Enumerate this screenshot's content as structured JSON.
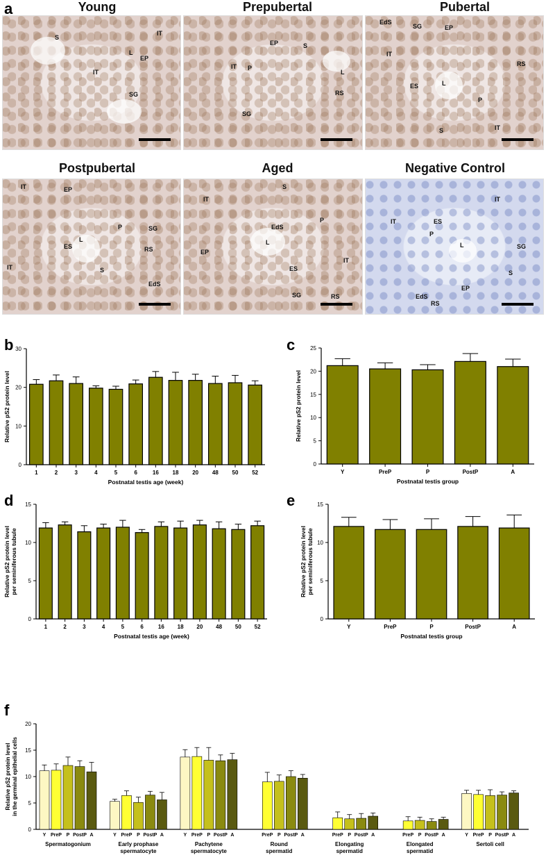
{
  "panel_letters": [
    "a",
    "b",
    "c",
    "d",
    "e",
    "f"
  ],
  "images": [
    {
      "title": "Young",
      "labels": [
        "S",
        "IT",
        "L",
        "EP",
        "IT",
        "SG"
      ],
      "kind": "stain"
    },
    {
      "title": "Prepubertal",
      "labels": [
        "EP",
        "S",
        "IT",
        "P",
        "L",
        "RS",
        "SG"
      ],
      "kind": "stain"
    },
    {
      "title": "Pubertal",
      "labels": [
        "EdS",
        "SG",
        "EP",
        "IT",
        "RS",
        "ES",
        "L",
        "P",
        "S",
        "IT"
      ],
      "kind": "stain"
    },
    {
      "title": "Postpubertal",
      "labels": [
        "IT",
        "EP",
        "P",
        "SG",
        "L",
        "ES",
        "RS",
        "S",
        "IT",
        "EdS"
      ],
      "kind": "stain"
    },
    {
      "title": "Aged",
      "labels": [
        "S",
        "IT",
        "EdS",
        "P",
        "L",
        "EP",
        "ES",
        "IT",
        "SG",
        "RS"
      ],
      "kind": "stain"
    },
    {
      "title": "Negative Control",
      "labels": [
        "IT",
        "IT",
        "ES",
        "P",
        "L",
        "SG",
        "S",
        "EP",
        "EdS",
        "RS"
      ],
      "kind": "neg"
    }
  ],
  "colors": {
    "bar": "#808000",
    "pale": "#fdf7c3",
    "yellow": "#ffff33",
    "lime": "#c5c01c",
    "olive": "#8a8a10",
    "dark": "#5a5a10"
  },
  "chart_data": [
    {
      "id": "b",
      "type": "bar",
      "categories": [
        "1",
        "2",
        "3",
        "4",
        "5",
        "6",
        "16",
        "18",
        "20",
        "48",
        "50",
        "52"
      ],
      "values": [
        20.8,
        21.7,
        21.0,
        19.8,
        19.5,
        20.9,
        22.6,
        21.8,
        21.8,
        21.0,
        21.2,
        20.6
      ],
      "errors": [
        1.2,
        1.5,
        1.7,
        0.6,
        0.8,
        1.0,
        1.5,
        2.1,
        1.6,
        1.9,
        1.9,
        1.1
      ],
      "xlabel": "Postnatal testis age (week)",
      "ylabel": [
        "Relative pS2 protein level"
      ],
      "ylim": [
        0,
        30
      ],
      "yticks": [
        0,
        10,
        20,
        30
      ]
    },
    {
      "id": "c",
      "type": "bar",
      "categories": [
        "Y",
        "PreP",
        "P",
        "PostP",
        "A"
      ],
      "values": [
        21.2,
        20.5,
        20.3,
        22.1,
        21.0
      ],
      "errors": [
        1.5,
        1.3,
        1.1,
        1.7,
        1.6
      ],
      "xlabel": "Postnatal testis group",
      "ylabel": [
        "Relative pS2 protein level"
      ],
      "ylim": [
        0,
        25
      ],
      "yticks": [
        0,
        5,
        10,
        15,
        20,
        25
      ]
    },
    {
      "id": "d",
      "type": "bar",
      "categories": [
        "1",
        "2",
        "3",
        "4",
        "5",
        "6",
        "16",
        "18",
        "20",
        "48",
        "50",
        "52"
      ],
      "values": [
        11.9,
        12.3,
        11.4,
        11.9,
        12.0,
        11.3,
        12.1,
        11.9,
        12.3,
        11.8,
        11.7,
        12.2
      ],
      "errors": [
        0.7,
        0.4,
        0.8,
        0.5,
        0.9,
        0.4,
        0.6,
        0.9,
        0.6,
        0.9,
        0.7,
        0.6
      ],
      "xlabel": "Postnatal testis age (week)",
      "ylabel": [
        "Relative pS2 protein level",
        "per seminiferous tubule"
      ],
      "ylim": [
        0,
        15
      ],
      "yticks": [
        0,
        5,
        10,
        15
      ]
    },
    {
      "id": "e",
      "type": "bar",
      "categories": [
        "Y",
        "PreP",
        "P",
        "PostP",
        "A"
      ],
      "values": [
        12.1,
        11.7,
        11.7,
        12.1,
        11.9
      ],
      "errors": [
        1.2,
        1.3,
        1.4,
        1.3,
        1.7
      ],
      "xlabel": "Postnatal testis group",
      "ylabel": [
        "Relative pS2 protein level",
        "per seminiferous tubule"
      ],
      "ylim": [
        0,
        15
      ],
      "yticks": [
        0,
        5,
        10,
        15
      ]
    },
    {
      "id": "f",
      "type": "bar",
      "ylabel": [
        "Relative pS2 protein level",
        "in the germinal epithelial cells"
      ],
      "ylim": [
        0,
        20
      ],
      "yticks": [
        0,
        5,
        10,
        15,
        20
      ],
      "groups": [
        {
          "name": [
            "Spermatogonium"
          ],
          "categories": [
            "Y",
            "PreP",
            "P",
            "PostP",
            "A"
          ],
          "values": [
            11.1,
            11.2,
            12.1,
            11.9,
            10.9
          ],
          "errors": [
            1.1,
            1.2,
            1.6,
            1.1,
            1.8
          ]
        },
        {
          "name": [
            "Early prophase",
            "spermatocyte"
          ],
          "categories": [
            "Y",
            "PreP",
            "P",
            "PostP",
            "A"
          ],
          "values": [
            5.3,
            6.4,
            5.1,
            6.5,
            5.6
          ],
          "errors": [
            0.4,
            0.9,
            1.0,
            0.7,
            1.4
          ]
        },
        {
          "name": [
            "Pachytene",
            "spermatocyte"
          ],
          "categories": [
            "Y",
            "PreP",
            "P",
            "PostP",
            "A"
          ],
          "values": [
            13.7,
            13.8,
            13.1,
            13.0,
            13.2
          ],
          "errors": [
            1.4,
            1.7,
            2.4,
            1.1,
            1.2
          ]
        },
        {
          "name": [
            "Round",
            "spermatid"
          ],
          "categories": [
            "PreP",
            "P",
            "PostP",
            "A"
          ],
          "values": [
            9.0,
            9.1,
            10.0,
            9.7
          ],
          "errors": [
            1.8,
            1.2,
            1.1,
            0.7
          ]
        },
        {
          "name": [
            "Elongating",
            "spermatid"
          ],
          "categories": [
            "PreP",
            "P",
            "PostP",
            "A"
          ],
          "values": [
            2.2,
            2.0,
            2.1,
            2.5
          ],
          "errors": [
            1.1,
            0.8,
            0.9,
            0.6
          ]
        },
        {
          "name": [
            "Elongated",
            "spermatid"
          ],
          "categories": [
            "PreP",
            "P",
            "PostP",
            "A"
          ],
          "values": [
            1.6,
            1.7,
            1.5,
            1.9
          ],
          "errors": [
            0.8,
            0.6,
            0.5,
            0.4
          ]
        },
        {
          "name": [
            "Sertoli cell"
          ],
          "categories": [
            "Y",
            "PreP",
            "P",
            "PostP",
            "A"
          ],
          "values": [
            6.8,
            6.6,
            6.4,
            6.5,
            6.9
          ],
          "errors": [
            0.6,
            0.8,
            1.1,
            0.6,
            0.4
          ]
        }
      ]
    }
  ]
}
